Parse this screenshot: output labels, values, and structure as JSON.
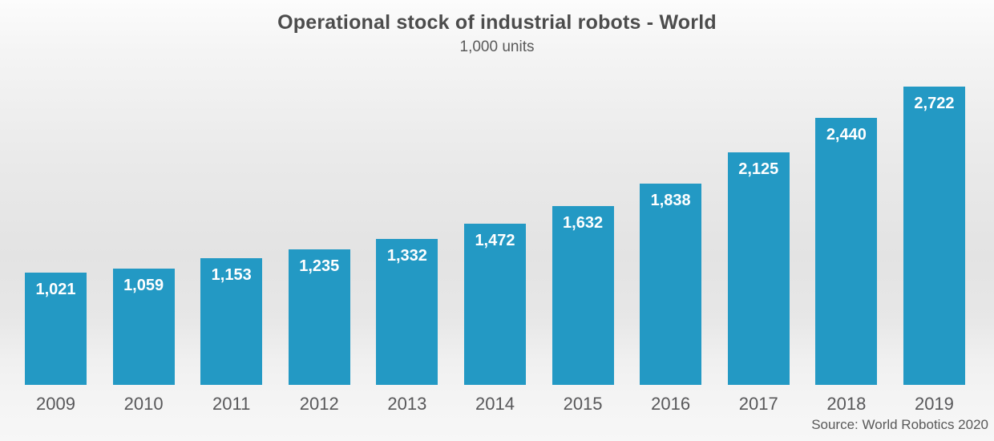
{
  "header": {
    "title": "Operational stock of industrial robots - World",
    "subtitle": "1,000 units"
  },
  "footer": {
    "source": "Source: World Robotics 2020"
  },
  "chart_data": {
    "type": "bar",
    "title": "Operational stock of industrial robots - World",
    "subtitle": "1,000 units",
    "categories": [
      "2009",
      "2010",
      "2011",
      "2012",
      "2013",
      "2014",
      "2015",
      "2016",
      "2017",
      "2018",
      "2019"
    ],
    "values": [
      1021,
      1059,
      1153,
      1235,
      1332,
      1472,
      1632,
      1838,
      2125,
      2440,
      2722
    ],
    "value_labels": [
      "1,021",
      "1,059",
      "1,153",
      "1,235",
      "1,332",
      "1,472",
      "1,632",
      "1,838",
      "2,125",
      "2,440",
      "2,722"
    ],
    "xlabel": "",
    "ylabel": "",
    "ylim": [
      0,
      2722
    ],
    "grid": false,
    "legend": false,
    "value_labels_position": "inside-top",
    "bar_color": "#2399c4",
    "value_label_color": "#ffffff",
    "axis_label_color": "#58585a",
    "title_color": "#4c4c4c",
    "source": "Source: World Robotics 2020"
  }
}
